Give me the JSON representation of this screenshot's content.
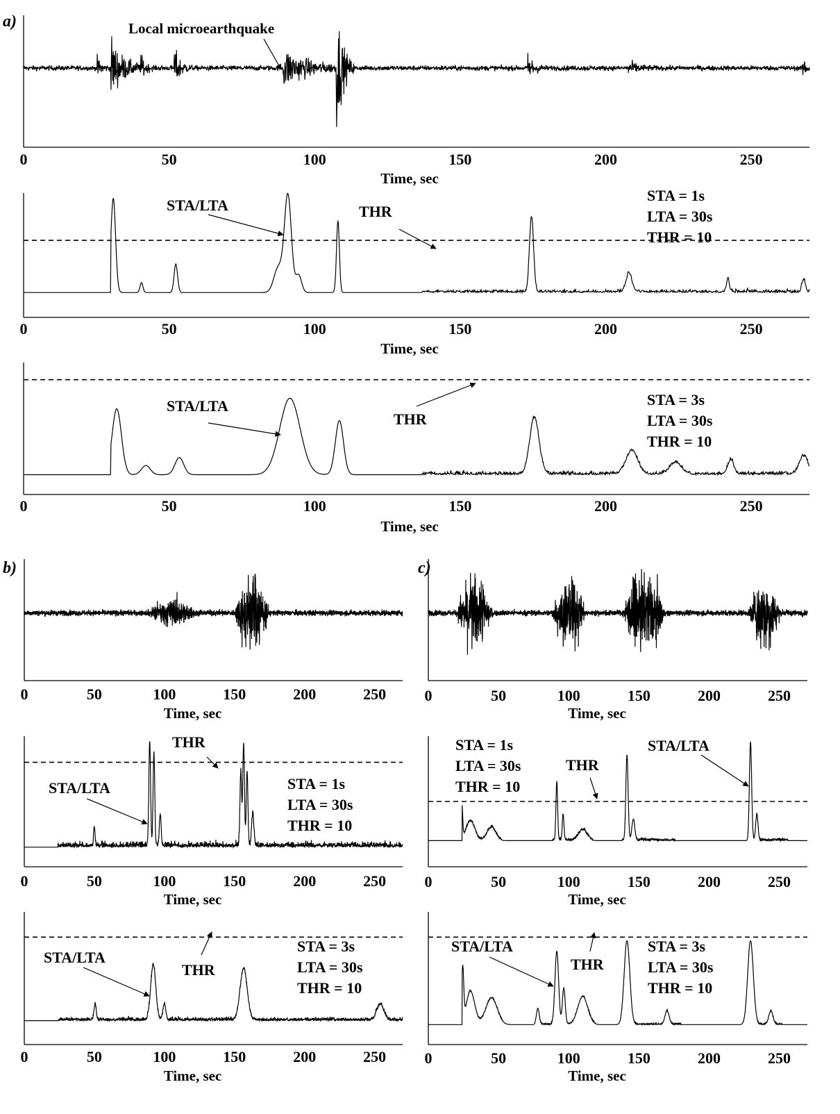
{
  "figure": {
    "panel_labels": {
      "a": "a)",
      "b": "b)",
      "c": "c)"
    }
  },
  "chart_data": [
    {
      "id": "a_signal",
      "type": "line",
      "panel": "a",
      "xlabel": "Time, sec",
      "ylabel": "",
      "xlim": [
        0,
        270
      ],
      "ylim": [
        -1,
        1
      ],
      "xticks": [
        0,
        50,
        100,
        150,
        200,
        250
      ],
      "grid": false,
      "series": [
        {
          "values_description": ""
        }
      ],
      "noise_level": 0.04,
      "events": [
        {
          "t": 25.5,
          "amp": 0.15,
          "dur": 1.5
        },
        {
          "t": 30.2,
          "amp": 0.45,
          "dur": 4
        },
        {
          "t": 40.5,
          "amp": 0.15,
          "dur": 1.5
        },
        {
          "t": 51.9,
          "amp": 0.3,
          "dur": 2
        },
        {
          "t": 89.5,
          "amp": 0.3,
          "dur": 8
        },
        {
          "t": 107.7,
          "amp": 0.9,
          "dur": 2
        },
        {
          "t": 173.5,
          "amp": 0.2,
          "dur": 2
        },
        {
          "t": 208,
          "amp": 0.1,
          "dur": 3
        },
        {
          "t": 268,
          "amp": 0.12,
          "dur": 2
        }
      ],
      "annotations": [
        {
          "text": "Local microearthquake",
          "x": 88,
          "y": 0.25
        }
      ]
    },
    {
      "id": "a_stalta_1s",
      "type": "line",
      "panel": "a",
      "xlabel": "Time, sec",
      "xlim": [
        0,
        270
      ],
      "ylim": [
        0,
        1
      ],
      "xticks": [
        0,
        50,
        100,
        150,
        200,
        250
      ],
      "grid": false,
      "threshold": 0.62,
      "baseline": 0.2,
      "start": 30,
      "settings": [
        "STA = 1s",
        "LTA = 30s",
        "THR = 10"
      ],
      "curve_label": "STA/LTA",
      "thr_label": "THR",
      "peaks": [
        {
          "t": 30.8,
          "h": 0.96,
          "w": 0.8
        },
        {
          "t": 40.5,
          "h": 0.28,
          "w": 0.5
        },
        {
          "t": 52.3,
          "h": 0.43,
          "w": 0.6
        },
        {
          "t": 87.5,
          "h": 0.4,
          "w": 1.5
        },
        {
          "t": 90.8,
          "h": 0.98,
          "w": 1.2
        },
        {
          "t": 94.5,
          "h": 0.34,
          "w": 1
        },
        {
          "t": 108,
          "h": 0.78,
          "w": 0.5
        },
        {
          "t": 174.5,
          "h": 0.81,
          "w": 0.7
        },
        {
          "t": 208,
          "h": 0.35,
          "w": 1
        },
        {
          "t": 242,
          "h": 0.3,
          "w": 0.5
        },
        {
          "t": 268,
          "h": 0.3,
          "w": 0.6
        }
      ],
      "noise_from": 137,
      "noise_level": 0.04
    },
    {
      "id": "a_stalta_3s",
      "type": "line",
      "panel": "a",
      "xlabel": "Time, sec",
      "xlim": [
        0,
        270
      ],
      "ylim": [
        0,
        1
      ],
      "xticks": [
        0,
        50,
        100,
        150,
        200,
        250
      ],
      "grid": false,
      "threshold": 0.87,
      "baseline": 0.15,
      "start": 30,
      "settings": [
        "STA = 3s",
        "LTA = 30s",
        "THR = 10"
      ],
      "curve_label": "STA/LTA",
      "thr_label": "THR",
      "peaks": [
        {
          "t": 32,
          "h": 0.65,
          "w": 1.6
        },
        {
          "t": 42,
          "h": 0.22,
          "w": 1.5
        },
        {
          "t": 53.5,
          "h": 0.28,
          "w": 1.5
        },
        {
          "t": 91.5,
          "h": 0.73,
          "w": 3.5
        },
        {
          "t": 108.5,
          "h": 0.56,
          "w": 1.4
        },
        {
          "t": 175.5,
          "h": 0.58,
          "w": 1.6
        },
        {
          "t": 209,
          "h": 0.33,
          "w": 2
        },
        {
          "t": 224,
          "h": 0.24,
          "w": 2
        },
        {
          "t": 243,
          "h": 0.26,
          "w": 1
        },
        {
          "t": 268,
          "h": 0.29,
          "w": 1.5
        }
      ],
      "noise_from": 137,
      "noise_level": 0.04
    },
    {
      "id": "b_signal",
      "type": "line",
      "panel": "b",
      "xlabel": "Time, sec",
      "xlim": [
        0,
        270
      ],
      "ylim": [
        -1,
        1
      ],
      "xticks": [
        0,
        50,
        100,
        150,
        200,
        250
      ],
      "grid": false,
      "noise_level": 0.05,
      "bursts": [
        {
          "from": 88,
          "to": 130,
          "amp": 0.25
        },
        {
          "from": 150,
          "to": 180,
          "amp": 0.85
        }
      ]
    },
    {
      "id": "b_stalta_1s",
      "type": "line",
      "panel": "b",
      "xlabel": "Time, sec",
      "xlim": [
        0,
        270
      ],
      "ylim": [
        0,
        1
      ],
      "xticks": [
        0,
        50,
        100,
        150,
        200,
        250
      ],
      "grid": false,
      "threshold": 0.8,
      "baseline": 0.15,
      "start": 24,
      "settings": [
        "STA = 1s",
        "LTA = 30s",
        "THR = 10"
      ],
      "curve_label": "STA/LTA",
      "thr_label": "THR",
      "peaks": [
        {
          "t": 50,
          "h": 0.3,
          "w": 0.5
        },
        {
          "t": 89.5,
          "h": 0.96,
          "w": 0.6
        },
        {
          "t": 92.5,
          "h": 0.86,
          "w": 0.6
        },
        {
          "t": 97,
          "h": 0.4,
          "w": 0.6
        },
        {
          "t": 154.5,
          "h": 0.72,
          "w": 0.6
        },
        {
          "t": 156.5,
          "h": 0.93,
          "w": 0.6
        },
        {
          "t": 159,
          "h": 0.7,
          "w": 0.6
        },
        {
          "t": 163,
          "h": 0.4,
          "w": 0.8
        }
      ],
      "noise_from": 24,
      "noise_level": 0.07
    },
    {
      "id": "b_stalta_3s",
      "type": "line",
      "panel": "b",
      "xlabel": "Time, sec",
      "xlim": [
        0,
        270
      ],
      "ylim": [
        0,
        1
      ],
      "xticks": [
        0,
        50,
        100,
        150,
        200,
        250
      ],
      "grid": false,
      "threshold": 0.81,
      "baseline": 0.18,
      "start": 24,
      "settings": [
        "STA = 3s",
        "LTA = 30s",
        "THR = 10"
      ],
      "curve_label": "STA/LTA",
      "thr_label": "THR",
      "peaks": [
        {
          "t": 50.5,
          "h": 0.3,
          "w": 0.8
        },
        {
          "t": 92,
          "h": 0.6,
          "w": 1.8
        },
        {
          "t": 100,
          "h": 0.3,
          "w": 1
        },
        {
          "t": 156.5,
          "h": 0.57,
          "w": 2.5
        },
        {
          "t": 254,
          "h": 0.3,
          "w": 2.5
        }
      ],
      "noise_from": 24,
      "noise_level": 0.04
    },
    {
      "id": "c_signal",
      "type": "line",
      "panel": "c",
      "xlabel": "Time, sec",
      "xlim": [
        0,
        270
      ],
      "ylim": [
        -1,
        1
      ],
      "xticks": [
        0,
        50,
        100,
        150,
        200,
        250
      ],
      "grid": false,
      "noise_level": 0.05,
      "bursts": [
        {
          "from": 20,
          "to": 52,
          "amp": 0.75
        },
        {
          "from": 88,
          "to": 117,
          "amp": 0.75
        },
        {
          "from": 138,
          "to": 175,
          "amp": 0.8
        },
        {
          "from": 228,
          "to": 256,
          "amp": 0.7
        }
      ]
    },
    {
      "id": "c_stalta_1s",
      "type": "line",
      "panel": "c",
      "xlabel": "Time, sec",
      "xlim": [
        0,
        270
      ],
      "ylim": [
        0,
        1
      ],
      "xticks": [
        0,
        50,
        100,
        150,
        200,
        250
      ],
      "grid": false,
      "threshold": 0.5,
      "baseline": 0.2,
      "start": 24,
      "settings": [
        "STA = 1s",
        "LTA = 30s",
        "THR = 10"
      ],
      "curve_label": "STA/LTA",
      "thr_label": "THR",
      "peaks": [
        {
          "t": 24,
          "h": 0.45,
          "w": 0.5
        },
        {
          "t": 30,
          "h": 0.35,
          "w": 3
        },
        {
          "t": 45,
          "h": 0.3,
          "w": 3
        },
        {
          "t": 91.5,
          "h": 0.65,
          "w": 0.6
        },
        {
          "t": 96,
          "h": 0.4,
          "w": 0.6
        },
        {
          "t": 110,
          "h": 0.28,
          "w": 3
        },
        {
          "t": 141.5,
          "h": 0.85,
          "w": 0.8
        },
        {
          "t": 146,
          "h": 0.36,
          "w": 1
        },
        {
          "t": 229.5,
          "h": 0.95,
          "w": 0.8
        },
        {
          "t": 234,
          "h": 0.4,
          "w": 0.8
        }
      ],
      "noise_from": 24,
      "noise_level": 0.03,
      "quiet_ranges": [
        [
          52,
          88
        ],
        [
          117,
          138
        ],
        [
          176,
          228
        ],
        [
          256,
          270
        ]
      ]
    },
    {
      "id": "c_stalta_3s",
      "type": "line",
      "panel": "c",
      "xlabel": "Time, sec",
      "xlim": [
        0,
        270
      ],
      "ylim": [
        0,
        1
      ],
      "xticks": [
        0,
        50,
        100,
        150,
        200,
        250
      ],
      "grid": false,
      "threshold": 0.81,
      "baseline": 0.15,
      "start": 24,
      "settings": [
        "STA = 3s",
        "LTA = 30s",
        "THR = 10"
      ],
      "curve_label": "STA/LTA",
      "thr_label": "THR",
      "peaks": [
        {
          "t": 24.5,
          "h": 0.55,
          "w": 0.7
        },
        {
          "t": 30,
          "h": 0.4,
          "w": 3
        },
        {
          "t": 45,
          "h": 0.35,
          "w": 4
        },
        {
          "t": 78,
          "h": 0.27,
          "w": 1
        },
        {
          "t": 91.5,
          "h": 0.7,
          "w": 1.3
        },
        {
          "t": 96.5,
          "h": 0.42,
          "w": 1
        },
        {
          "t": 110,
          "h": 0.36,
          "w": 3.5
        },
        {
          "t": 141.5,
          "h": 0.78,
          "w": 2
        },
        {
          "t": 170,
          "h": 0.25,
          "w": 1.5
        },
        {
          "t": 229.5,
          "h": 0.78,
          "w": 2
        },
        {
          "t": 244,
          "h": 0.25,
          "w": 1.5
        }
      ],
      "noise_from": 24,
      "noise_level": 0.02,
      "quiet_ranges": [
        [
          53,
          76
        ],
        [
          119,
          137
        ],
        [
          180,
          226
        ],
        [
          252,
          270
        ]
      ]
    }
  ]
}
